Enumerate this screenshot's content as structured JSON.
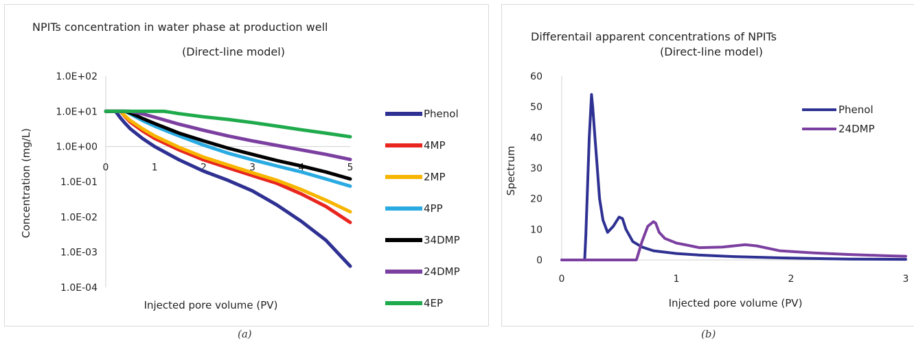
{
  "figure": {
    "caption_a": "(a)",
    "caption_b": "(b)"
  },
  "chart_data": [
    {
      "type": "line",
      "title": "NPITs concentration in water phase at production well",
      "subtitle": "(Direct-line model)",
      "xlabel": "Injected pore volume (PV)",
      "ylabel": "Concentration (mg/L)",
      "yscale": "log",
      "xlim": [
        0,
        5
      ],
      "ylim": [
        0.0001,
        100
      ],
      "x_ticks": [
        "0",
        "1",
        "2",
        "3",
        "4",
        "5"
      ],
      "y_ticks": [
        "1.0E+02",
        "1.0E+01",
        "1.0E+00",
        "1.0E-01",
        "1.0E-02",
        "1.0E-03",
        "1.0E-04"
      ],
      "legend_position": "right",
      "grid": false,
      "series": [
        {
          "name": "Phenol",
          "color": "#2e3192",
          "x": [
            0,
            0.2,
            0.3,
            0.4,
            0.5,
            0.75,
            1,
            1.5,
            2,
            2.5,
            3,
            3.5,
            4,
            4.5,
            5
          ],
          "y": [
            10,
            10,
            6.5,
            4.5,
            3.2,
            1.7,
            1.0,
            0.42,
            0.2,
            0.11,
            0.055,
            0.022,
            0.0075,
            0.0022,
            0.0004
          ]
        },
        {
          "name": "4MP",
          "color": "#e8261f",
          "x": [
            0,
            0.3,
            0.4,
            0.5,
            0.75,
            1,
            1.5,
            2,
            2.5,
            3,
            3.5,
            4,
            4.5,
            5
          ],
          "y": [
            10,
            10,
            7,
            5,
            2.8,
            1.7,
            0.8,
            0.42,
            0.25,
            0.15,
            0.09,
            0.045,
            0.02,
            0.007
          ]
        },
        {
          "name": "2MP",
          "color": "#f7b500",
          "x": [
            0,
            0.3,
            0.4,
            0.5,
            0.75,
            1,
            1.5,
            2,
            2.5,
            3,
            3.5,
            4,
            4.5,
            5
          ],
          "y": [
            10,
            10,
            7.3,
            5.5,
            3.2,
            2.0,
            0.95,
            0.5,
            0.3,
            0.18,
            0.11,
            0.06,
            0.03,
            0.014
          ]
        },
        {
          "name": "4PP",
          "color": "#29abe2",
          "x": [
            0,
            0.4,
            0.5,
            0.75,
            1,
            1.5,
            2,
            2.5,
            3,
            3.5,
            4,
            4.5,
            5
          ],
          "y": [
            10,
            10,
            8.5,
            5.5,
            3.8,
            2.0,
            1.1,
            0.65,
            0.42,
            0.28,
            0.19,
            0.12,
            0.075
          ]
        },
        {
          "name": "34DMP",
          "color": "#000000",
          "x": [
            0,
            0.4,
            0.5,
            0.75,
            1,
            1.5,
            2,
            2.5,
            3,
            3.5,
            4,
            4.5,
            5
          ],
          "y": [
            10,
            10,
            9,
            6.3,
            4.5,
            2.4,
            1.45,
            0.9,
            0.6,
            0.4,
            0.28,
            0.19,
            0.12
          ]
        },
        {
          "name": "24DMP",
          "color": "#7b3fa0",
          "x": [
            0,
            0.5,
            0.75,
            1,
            1.5,
            2,
            2.5,
            3,
            3.5,
            4,
            4.5,
            5
          ],
          "y": [
            10,
            10,
            8.5,
            6.8,
            4.3,
            2.9,
            2.0,
            1.45,
            1.08,
            0.8,
            0.6,
            0.43
          ]
        },
        {
          "name": "4EP",
          "color": "#1faa4c",
          "x": [
            0,
            1.2,
            1.5,
            2,
            2.5,
            3,
            3.5,
            4,
            4.5,
            5
          ],
          "y": [
            10,
            10,
            8.6,
            7,
            5.9,
            4.8,
            3.8,
            3.0,
            2.4,
            1.9
          ]
        }
      ]
    },
    {
      "type": "line",
      "title": "Differentail apparent concentrations of NPITs",
      "subtitle": "(Direct-line model)",
      "xlabel": "Injected pore volume (PV)",
      "ylabel": "Spectrum",
      "xlim": [
        0,
        3
      ],
      "ylim": [
        0,
        60
      ],
      "x_ticks": [
        0,
        1,
        2,
        3
      ],
      "y_ticks": [
        0,
        10,
        20,
        30,
        40,
        50,
        60
      ],
      "legend_position": "top-right",
      "grid": false,
      "series": [
        {
          "name": "Phenol",
          "color": "#2e3192",
          "x": [
            0,
            0.2,
            0.21,
            0.24,
            0.26,
            0.27,
            0.29,
            0.31,
            0.33,
            0.36,
            0.4,
            0.45,
            0.5,
            0.53,
            0.56,
            0.62,
            0.7,
            0.8,
            1.0,
            1.2,
            1.5,
            2.0,
            2.5,
            3.0
          ],
          "y": [
            0,
            0,
            8,
            40,
            54,
            50,
            40,
            30,
            20,
            13,
            9,
            11,
            14,
            13.5,
            10,
            6,
            4.2,
            3,
            2.1,
            1.6,
            1.1,
            0.6,
            0.3,
            0.2
          ]
        },
        {
          "name": "24DMP",
          "color": "#7b3fa0",
          "x": [
            0,
            0.65,
            0.66,
            0.7,
            0.75,
            0.8,
            0.82,
            0.85,
            0.9,
            1.0,
            1.1,
            1.2,
            1.4,
            1.6,
            1.7,
            1.9,
            2.2,
            2.5,
            2.8,
            3.0
          ],
          "y": [
            0,
            0,
            1,
            6,
            11,
            12.5,
            12,
            9,
            7,
            5.5,
            4.8,
            4,
            4.2,
            5,
            4.6,
            3,
            2.3,
            1.8,
            1.4,
            1.2
          ]
        }
      ]
    }
  ]
}
